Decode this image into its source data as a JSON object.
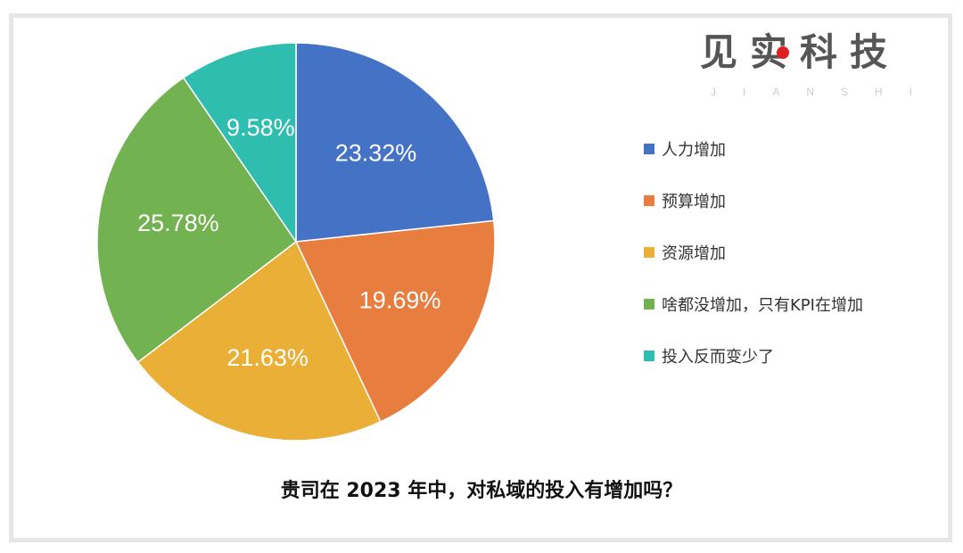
{
  "logo": {
    "cn": "见实科技",
    "en": "JIANSHI"
  },
  "chart_data": {
    "type": "pie",
    "title": "贵司在 2023 年中，对私域的投入有增加吗？",
    "start": "top, clockwise",
    "legend_position": "right",
    "slices": [
      {
        "label": "人力增加",
        "value": 23.32,
        "display": "23.32%",
        "color": "#4472C4"
      },
      {
        "label": "预算增加",
        "value": 19.69,
        "display": "19.69%",
        "color": "#E77E3F"
      },
      {
        "label": "资源增加",
        "value": 21.63,
        "display": "21.63%",
        "color": "#E9AF36"
      },
      {
        "label": "啥都没增加，只有KPI在增加",
        "value": 25.78,
        "display": "25.78%",
        "color": "#72B250"
      },
      {
        "label": "投入反而变少了",
        "value": 9.58,
        "display": "9.58%",
        "color": "#2EBDAF"
      }
    ]
  }
}
